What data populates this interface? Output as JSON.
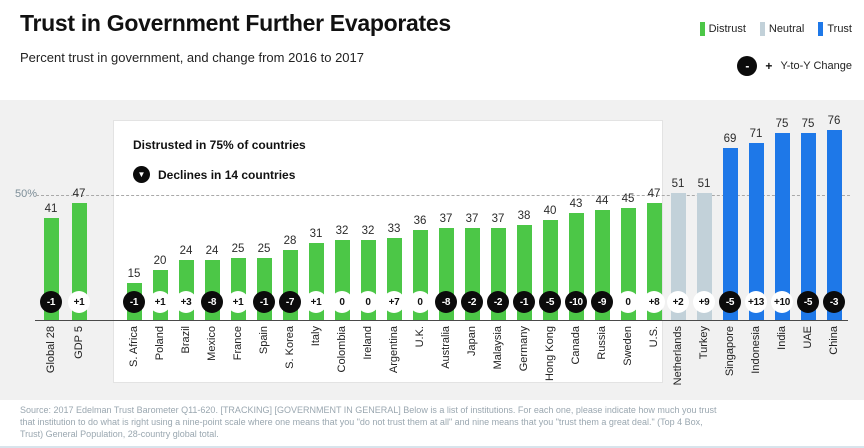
{
  "header": {
    "title": "Trust in Government Further Evaporates",
    "subtitle": "Percent trust in government, and change from 2016 to 2017"
  },
  "legend": {
    "items": [
      {
        "label": "Distrust",
        "key": "distrust"
      },
      {
        "label": "Neutral",
        "key": "neutral"
      },
      {
        "label": "Trust",
        "key": "trust"
      }
    ],
    "change": {
      "minus": "-",
      "plus": "+",
      "label": "Y-to-Y Change"
    }
  },
  "colors": {
    "distrust": "#4cc747",
    "neutral": "#c2d1d9",
    "trust": "#1e78e8",
    "badge_negative": "#0b0b0b",
    "badge_positive": "#ffffff"
  },
  "annotation": {
    "headline": "Distrusted in 75% of countries",
    "icon": "▼",
    "subline": "Declines in 14 countries"
  },
  "chart_data": {
    "type": "bar",
    "title": "Trust in Government Further Evaporates",
    "ylabel": "Percent trust in government",
    "ylim": [
      0,
      100
    ],
    "gridline": {
      "value": 50,
      "label": "50%"
    },
    "legend_position": "top-right",
    "sections": [
      {
        "name": "global",
        "bars": [
          {
            "label": "Global 28",
            "value": 41,
            "change": -1,
            "segment": "distrust"
          },
          {
            "label": "GDP 5",
            "value": 47,
            "change": 1,
            "segment": "distrust"
          }
        ]
      },
      {
        "name": "distrusted-box",
        "bars": [
          {
            "label": "S. Africa",
            "value": 15,
            "change": -1,
            "segment": "distrust"
          },
          {
            "label": "Poland",
            "value": 20,
            "change": 1,
            "segment": "distrust"
          },
          {
            "label": "Brazil",
            "value": 24,
            "change": 3,
            "segment": "distrust"
          },
          {
            "label": "Mexico",
            "value": 24,
            "change": -8,
            "segment": "distrust"
          },
          {
            "label": "France",
            "value": 25,
            "change": 1,
            "segment": "distrust"
          },
          {
            "label": "Spain",
            "value": 25,
            "change": -1,
            "segment": "distrust"
          },
          {
            "label": "S. Korea",
            "value": 28,
            "change": -7,
            "segment": "distrust"
          },
          {
            "label": "Italy",
            "value": 31,
            "change": 1,
            "segment": "distrust"
          },
          {
            "label": "Colombia",
            "value": 32,
            "change": 0,
            "segment": "distrust"
          },
          {
            "label": "Ireland",
            "value": 32,
            "change": 0,
            "segment": "distrust"
          },
          {
            "label": "Argentina",
            "value": 33,
            "change": 7,
            "segment": "distrust"
          },
          {
            "label": "U.K.",
            "value": 36,
            "change": 0,
            "segment": "distrust"
          },
          {
            "label": "Australia",
            "value": 37,
            "change": -8,
            "segment": "distrust"
          },
          {
            "label": "Japan",
            "value": 37,
            "change": -2,
            "segment": "distrust"
          },
          {
            "label": "Malaysia",
            "value": 37,
            "change": -2,
            "segment": "distrust"
          },
          {
            "label": "Germany",
            "value": 38,
            "change": -1,
            "segment": "distrust"
          },
          {
            "label": "Hong Kong",
            "value": 40,
            "change": -5,
            "segment": "distrust"
          },
          {
            "label": "Canada",
            "value": 43,
            "change": -10,
            "segment": "distrust"
          },
          {
            "label": "Russia",
            "value": 44,
            "change": -9,
            "segment": "distrust"
          },
          {
            "label": "Sweden",
            "value": 45,
            "change": 0,
            "segment": "distrust"
          },
          {
            "label": "U.S.",
            "value": 47,
            "change": 8,
            "segment": "distrust"
          }
        ]
      },
      {
        "name": "trusted",
        "bars": [
          {
            "label": "Netherlands",
            "value": 51,
            "change": 2,
            "segment": "neutral"
          },
          {
            "label": "Turkey",
            "value": 51,
            "change": 9,
            "segment": "neutral"
          },
          {
            "label": "Singapore",
            "value": 69,
            "change": -5,
            "segment": "trust"
          },
          {
            "label": "Indonesia",
            "value": 71,
            "change": 13,
            "segment": "trust"
          },
          {
            "label": "India",
            "value": 75,
            "change": 10,
            "segment": "trust"
          },
          {
            "label": "UAE",
            "value": 75,
            "change": -5,
            "segment": "trust"
          },
          {
            "label": "China",
            "value": 76,
            "change": -3,
            "segment": "trust"
          }
        ]
      }
    ]
  },
  "footer": {
    "source": "Source: 2017 Edelman Trust Barometer  Q11-620. [TRACKING] [GOVERNMENT IN GENERAL] Below is a list of institutions. For each one, please indicate how much you trust that institution to do what is right using a nine-point scale where one means that you \"do not trust them at all\" and nine means that you \"trust them a great deal.\" (Top 4 Box, Trust) General Population, 28-country global total."
  }
}
